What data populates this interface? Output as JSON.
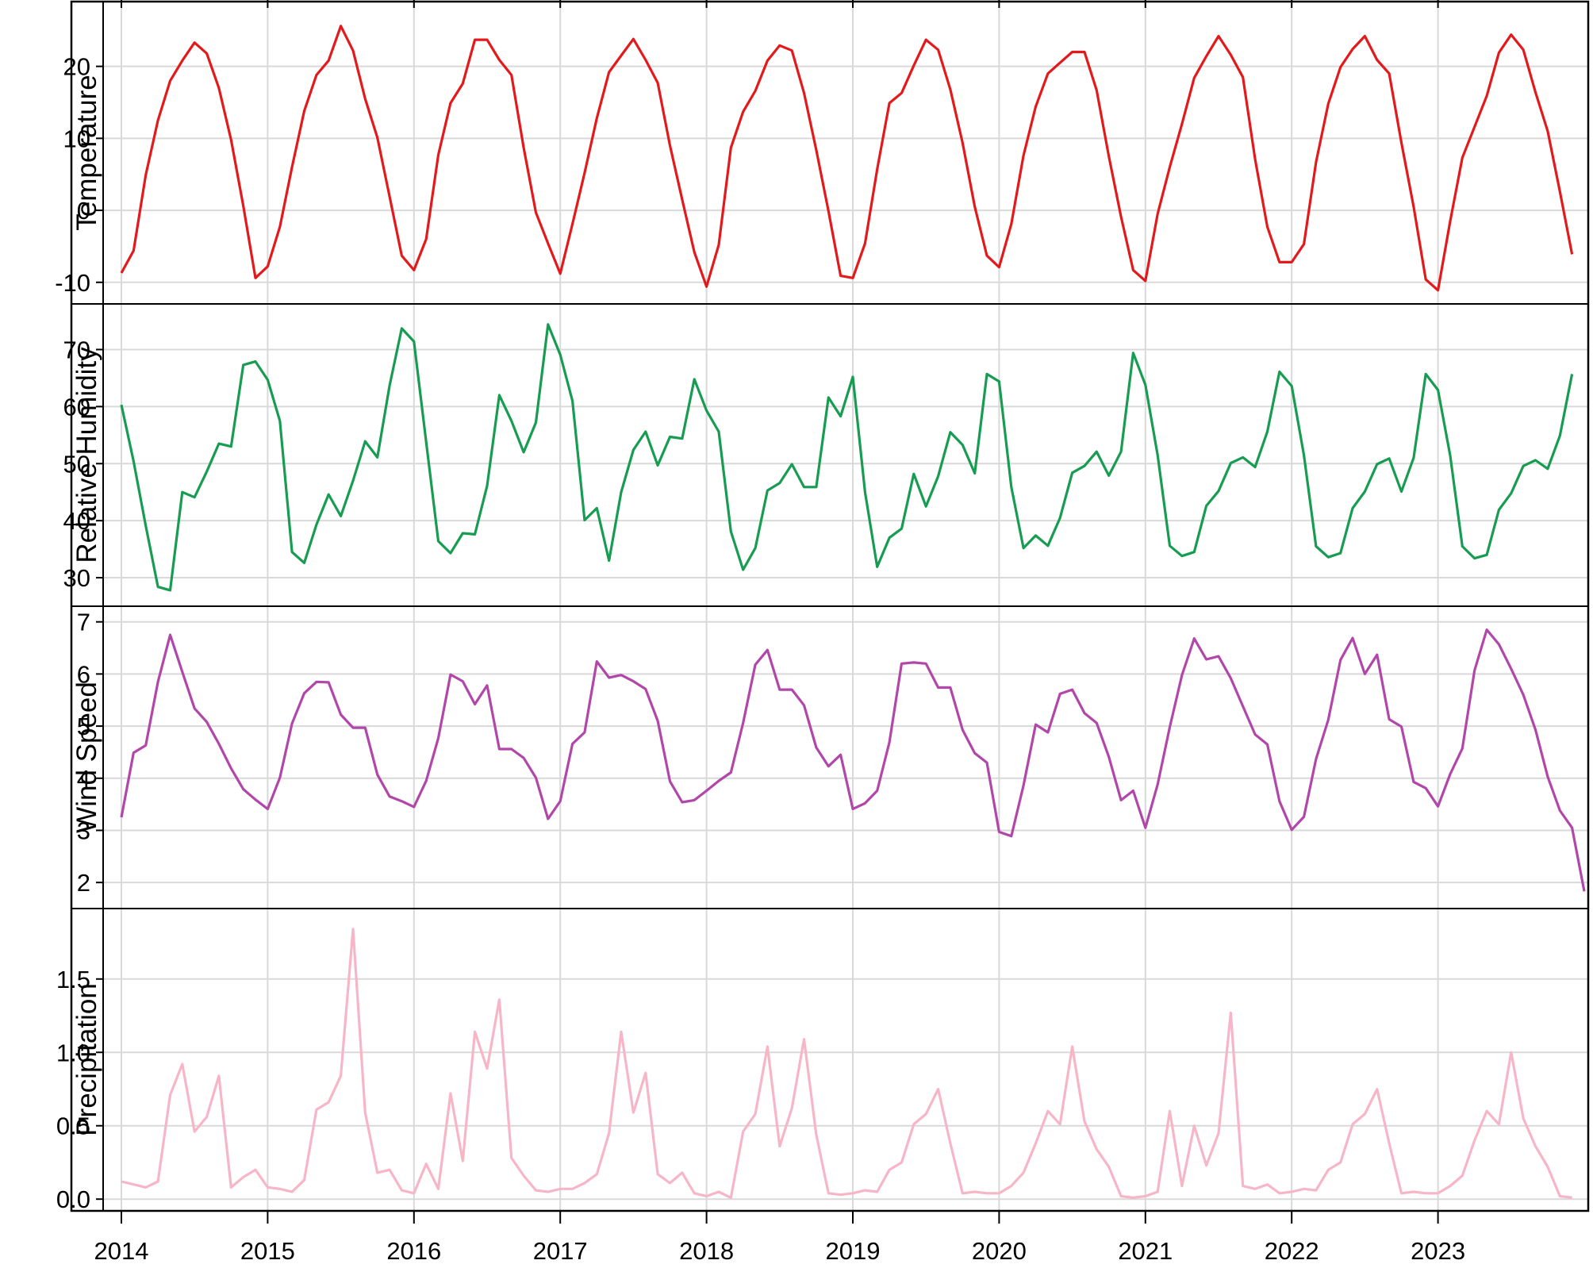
{
  "chart_data": {
    "type": "line",
    "x_axis": {
      "tick_labels": [
        "2014",
        "2015",
        "2016",
        "2017",
        "2018",
        "2019",
        "2020",
        "2021",
        "2022",
        "2023"
      ],
      "start": "2014-01",
      "frequency": "monthly",
      "range": [
        "2014-01",
        "2023-12"
      ]
    },
    "grid": true,
    "panels": [
      {
        "name": "Temperature",
        "ylabel": "Temperature",
        "color": "#e31a1c",
        "ylim": [
          -13,
          29
        ],
        "yticks": [
          -10,
          0,
          10,
          20
        ],
        "ytick_labels": [
          "-10",
          "0",
          "10",
          "20"
        ],
        "values": [
          -8.7,
          -5.6,
          4.9,
          12.5,
          18.0,
          20.8,
          23.3,
          21.8,
          17.0,
          9.8,
          0.6,
          -9.4,
          -7.8,
          -2.3,
          6.0,
          13.8,
          18.8,
          20.8,
          25.6,
          22.2,
          15.5,
          10.1,
          1.9,
          -6.3,
          -8.3,
          -4.0,
          7.7,
          14.9,
          17.6,
          23.7,
          23.7,
          20.9,
          18.8,
          8.7,
          -0.3,
          -4.6,
          -8.8,
          -1.9,
          5.2,
          12.8,
          19.2,
          21.5,
          23.8,
          20.9,
          17.7,
          9.0,
          1.5,
          -5.8,
          -10.6,
          -4.8,
          8.7,
          13.7,
          16.6,
          20.8,
          22.9,
          22.2,
          16.3,
          8.4,
          -0.1,
          -9.1,
          -9.4,
          -4.6,
          5.7,
          14.9,
          16.3,
          20.1,
          23.7,
          22.3,
          16.8,
          9.4,
          0.5,
          -6.3,
          -7.9,
          -1.9,
          7.6,
          14.4,
          19.0,
          20.5,
          22.0,
          22.0,
          16.7,
          7.5,
          -0.9,
          -8.3,
          -9.8,
          -0.5,
          6.0,
          12.0,
          18.4,
          21.4,
          24.2,
          21.6,
          18.5,
          7.1,
          -2.3,
          -7.2,
          -7.2,
          -4.7,
          6.7,
          14.8,
          19.9,
          22.4,
          24.2,
          20.9,
          19.0,
          9.4,
          0.5,
          -9.6,
          -11.1,
          -1.5,
          7.3,
          11.6,
          15.9,
          21.9,
          24.4,
          22.3,
          16.4,
          11.0,
          2.6,
          -6.1
        ]
      },
      {
        "name": "Relative Humidity",
        "ylabel": "Relative Humidity",
        "color": "#179c52",
        "ylim": [
          25,
          78
        ],
        "yticks": [
          30,
          40,
          50,
          60,
          70
        ],
        "ytick_labels": [
          "30",
          "40",
          "50",
          "60",
          "70"
        ],
        "values": [
          60.3,
          50.4,
          39.1,
          28.4,
          27.8,
          45.0,
          44.1,
          48.6,
          53.5,
          53.0,
          67.3,
          67.9,
          64.7,
          57.5,
          34.5,
          32.6,
          39.3,
          44.6,
          40.8,
          47.0,
          53.9,
          51.1,
          63.7,
          73.7,
          71.4,
          53.8,
          36.4,
          34.3,
          37.8,
          37.6,
          46.1,
          62.0,
          57.5,
          52.0,
          57.2,
          74.4,
          69.1,
          61.0,
          40.1,
          42.2,
          33.0,
          45.0,
          52.4,
          55.6,
          49.7,
          54.7,
          54.4,
          64.8,
          59.3,
          55.6,
          38.1,
          31.4,
          35.2,
          45.3,
          46.6,
          49.9,
          45.9,
          45.9,
          61.6,
          58.3,
          65.2,
          45.0,
          31.9,
          37.0,
          38.6,
          48.2,
          42.5,
          47.8,
          55.5,
          53.3,
          48.3,
          65.7,
          64.4,
          45.9,
          35.2,
          37.4,
          35.6,
          40.5,
          48.4,
          49.6,
          52.1,
          47.9,
          52.1,
          69.4,
          63.8,
          51.5,
          35.6,
          33.8,
          34.5,
          42.6,
          45.2,
          50.1,
          51.1,
          49.4,
          55.6,
          66.1,
          63.6,
          51.5,
          35.5,
          33.6,
          34.3,
          42.2,
          45.1,
          49.9,
          50.9,
          45.1,
          51.0,
          65.7,
          62.9,
          51.4,
          35.5,
          33.4,
          34.0,
          41.9,
          44.8,
          49.6,
          50.6,
          49.1,
          54.9,
          65.7
        ]
      },
      {
        "name": "Wind Speed",
        "ylabel": "Wind Speed",
        "color": "#b147a8",
        "ylim": [
          1.5,
          7.3
        ],
        "yticks": [
          2,
          3,
          4,
          5,
          6,
          7
        ],
        "ytick_labels": [
          "2",
          "3",
          "4",
          "5",
          "6",
          "7"
        ],
        "values": [
          3.25,
          4.49,
          4.63,
          5.85,
          6.75,
          6.04,
          5.34,
          5.08,
          4.66,
          4.19,
          3.79,
          3.59,
          3.41,
          4.01,
          5.05,
          5.63,
          5.85,
          5.84,
          5.22,
          4.97,
          4.97,
          4.07,
          3.65,
          3.56,
          3.45,
          3.95,
          4.77,
          5.99,
          5.86,
          5.42,
          5.78,
          4.56,
          4.56,
          4.39,
          4.01,
          3.22,
          3.56,
          4.66,
          4.88,
          6.24,
          5.93,
          5.98,
          5.86,
          5.71,
          5.1,
          3.94,
          3.54,
          3.58,
          3.76,
          3.95,
          4.11,
          5.06,
          6.18,
          6.46,
          5.7,
          5.7,
          5.4,
          4.59,
          4.23,
          4.45,
          3.41,
          3.52,
          3.76,
          4.69,
          6.2,
          6.22,
          6.2,
          5.74,
          5.74,
          4.93,
          4.48,
          4.3,
          2.97,
          2.89,
          3.86,
          5.03,
          4.88,
          5.62,
          5.7,
          5.25,
          5.06,
          4.41,
          3.58,
          3.76,
          3.05,
          3.88,
          4.98,
          5.98,
          6.68,
          6.28,
          6.34,
          5.92,
          5.38,
          4.84,
          4.65,
          3.56,
          3.01,
          3.26,
          4.37,
          5.12,
          6.27,
          6.69,
          6.0,
          6.37,
          5.13,
          4.99,
          3.93,
          3.81,
          3.46,
          4.08,
          4.57,
          6.07,
          6.85,
          6.57,
          6.1,
          5.6,
          4.93,
          4.03,
          3.38,
          3.05,
          1.83
        ]
      },
      {
        "name": "Precipitation",
        "ylabel": "Precipitation",
        "color": "#f7b6c8",
        "ylim": [
          -0.08,
          1.98
        ],
        "yticks": [
          0.0,
          0.5,
          1.0,
          1.5
        ],
        "ytick_labels": [
          "0.0",
          "0.5",
          "1.0",
          "1.5"
        ],
        "values": [
          0.12,
          0.1,
          0.08,
          0.12,
          0.71,
          0.92,
          0.46,
          0.56,
          0.84,
          0.08,
          0.15,
          0.2,
          0.08,
          0.07,
          0.05,
          0.13,
          0.61,
          0.66,
          0.84,
          1.84,
          0.59,
          0.18,
          0.2,
          0.06,
          0.04,
          0.24,
          0.07,
          0.72,
          0.26,
          1.14,
          0.89,
          1.36,
          0.28,
          0.16,
          0.06,
          0.05,
          0.07,
          0.07,
          0.11,
          0.17,
          0.45,
          1.14,
          0.59,
          0.86,
          0.17,
          0.11,
          0.18,
          0.04,
          0.02,
          0.05,
          0.01,
          0.46,
          0.58,
          1.04,
          0.36,
          0.62,
          1.09,
          0.44,
          0.04,
          0.03,
          0.04,
          0.06,
          0.05,
          0.2,
          0.25,
          0.51,
          0.58,
          0.75,
          0.38,
          0.04,
          0.05,
          0.04,
          0.04,
          0.09,
          0.18,
          0.38,
          0.6,
          0.51,
          1.04,
          0.53,
          0.34,
          0.22,
          0.02,
          0.01,
          0.02,
          0.05,
          0.6,
          0.09,
          0.5,
          0.23,
          0.45,
          1.27,
          0.09,
          0.07,
          0.1,
          0.04,
          0.05,
          0.07,
          0.06,
          0.2,
          0.25,
          0.51,
          0.58,
          0.75,
          0.38,
          0.04,
          0.05,
          0.04,
          0.04,
          0.09,
          0.16,
          0.4,
          0.6,
          0.51,
          1.0,
          0.55,
          0.36,
          0.22,
          0.02,
          0.01
        ]
      }
    ]
  }
}
